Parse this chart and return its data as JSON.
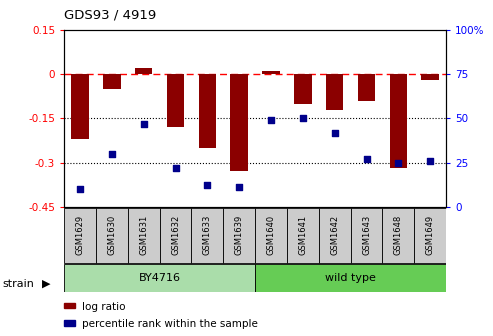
{
  "title": "GDS93 / 4919",
  "samples": [
    "GSM1629",
    "GSM1630",
    "GSM1631",
    "GSM1632",
    "GSM1633",
    "GSM1639",
    "GSM1640",
    "GSM1641",
    "GSM1642",
    "GSM1643",
    "GSM1648",
    "GSM1649"
  ],
  "log_ratio": [
    -0.22,
    -0.05,
    0.02,
    -0.18,
    -0.25,
    -0.33,
    0.01,
    -0.1,
    -0.12,
    -0.09,
    -0.32,
    -0.02
  ],
  "percentile_rank": [
    10,
    30,
    47,
    22,
    12,
    11,
    49,
    50,
    42,
    27,
    25,
    26
  ],
  "strain_groups": [
    {
      "label": "BY4716",
      "start": 0,
      "end": 6,
      "color": "#aaddaa"
    },
    {
      "label": "wild type",
      "start": 6,
      "end": 12,
      "color": "#66cc55"
    }
  ],
  "ylim_left": [
    -0.45,
    0.15
  ],
  "ylim_right": [
    0,
    100
  ],
  "yticks_left": [
    0.15,
    0.0,
    -0.15,
    -0.3,
    -0.45
  ],
  "yticks_left_labels": [
    "0.15",
    "0",
    "-0.15",
    "-0.3",
    "-0.45"
  ],
  "yticks_right": [
    100,
    75,
    50,
    25,
    0
  ],
  "yticks_right_labels": [
    "100%",
    "75",
    "50",
    "25",
    "0"
  ],
  "bar_color": "#8B0000",
  "dot_color": "#00008B",
  "dotted_lines": [
    -0.15,
    -0.3
  ],
  "background_color": "#ffffff",
  "plot_bg": "#ffffff",
  "sample_box_color": "#cccccc",
  "legend_bar_label": "log ratio",
  "legend_dot_label": "percentile rank within the sample",
  "strain_label": "strain"
}
